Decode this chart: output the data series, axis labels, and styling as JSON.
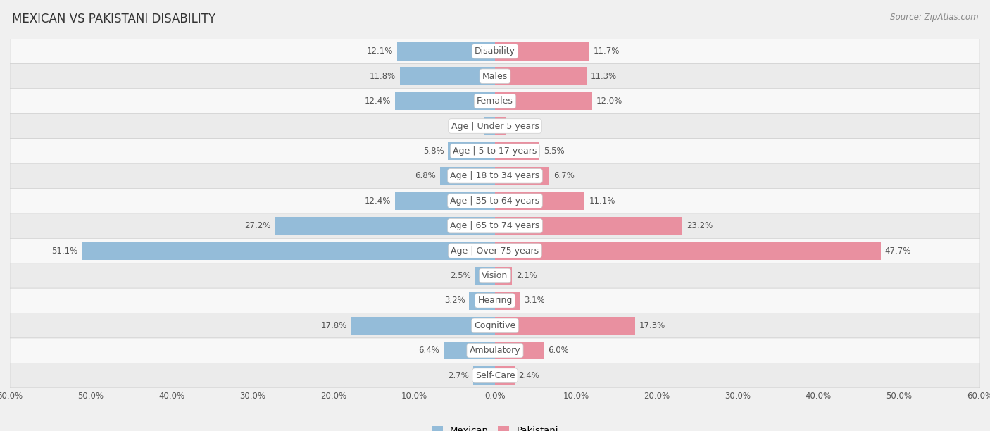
{
  "title": "MEXICAN VS PAKISTANI DISABILITY",
  "source": "Source: ZipAtlas.com",
  "categories": [
    "Disability",
    "Males",
    "Females",
    "Age | Under 5 years",
    "Age | 5 to 17 years",
    "Age | 18 to 34 years",
    "Age | 35 to 64 years",
    "Age | 65 to 74 years",
    "Age | Over 75 years",
    "Vision",
    "Hearing",
    "Cognitive",
    "Ambulatory",
    "Self-Care"
  ],
  "mexican_values": [
    12.1,
    11.8,
    12.4,
    1.3,
    5.8,
    6.8,
    12.4,
    27.2,
    51.1,
    2.5,
    3.2,
    17.8,
    6.4,
    2.7
  ],
  "pakistani_values": [
    11.7,
    11.3,
    12.0,
    1.3,
    5.5,
    6.7,
    11.1,
    23.2,
    47.7,
    2.1,
    3.1,
    17.3,
    6.0,
    2.4
  ],
  "mexican_color": "#94bcd9",
  "pakistani_color": "#e990a0",
  "mexican_label": "Mexican",
  "pakistani_label": "Pakistani",
  "axis_limit": 60.0,
  "bar_height": 0.72,
  "background_color": "#f0f0f0",
  "row_bg_colors": [
    "#f8f8f8",
    "#ebebeb"
  ],
  "title_fontsize": 12,
  "source_fontsize": 8.5,
  "label_fontsize": 9,
  "value_fontsize": 8.5,
  "legend_fontsize": 9.5
}
